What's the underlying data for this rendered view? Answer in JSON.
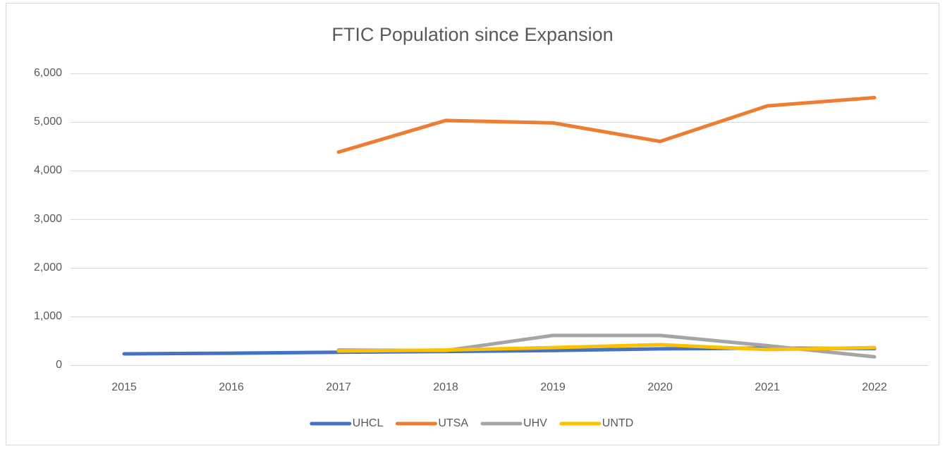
{
  "chart_data": {
    "type": "line",
    "title": "FTIC Population since Expansion",
    "categories": [
      "2015",
      "2016",
      "2017",
      "2018",
      "2019",
      "2020",
      "2021",
      "2022"
    ],
    "series": [
      {
        "name": "UHCL",
        "color": "#4472c4",
        "values": [
          232,
          245,
          265,
          280,
          300,
          335,
          350,
          340
        ]
      },
      {
        "name": "UTSA",
        "color": "#ed7d31",
        "values": [
          null,
          null,
          4380,
          5030,
          4980,
          4600,
          5330,
          5500
        ]
      },
      {
        "name": "UHV",
        "color": "#a5a5a5",
        "values": [
          null,
          null,
          310,
          300,
          610,
          610,
          400,
          170
        ]
      },
      {
        "name": "UNTD",
        "color": "#ffc000",
        "values": [
          null,
          null,
          290,
          310,
          360,
          420,
          320,
          360
        ]
      }
    ],
    "ylim": [
      0,
      6000
    ],
    "yticks": [
      0,
      {
        "value": 1000,
        "label": "1,000"
      },
      {
        "value": 2000,
        "label": "2,000"
      },
      {
        "value": 3000,
        "label": "3,000"
      },
      {
        "value": 4000,
        "label": "4,000"
      },
      {
        "value": 5000,
        "label": "5,000"
      },
      {
        "value": 6000,
        "label": "6,000"
      }
    ],
    "grid": true,
    "legend": "bottom"
  }
}
